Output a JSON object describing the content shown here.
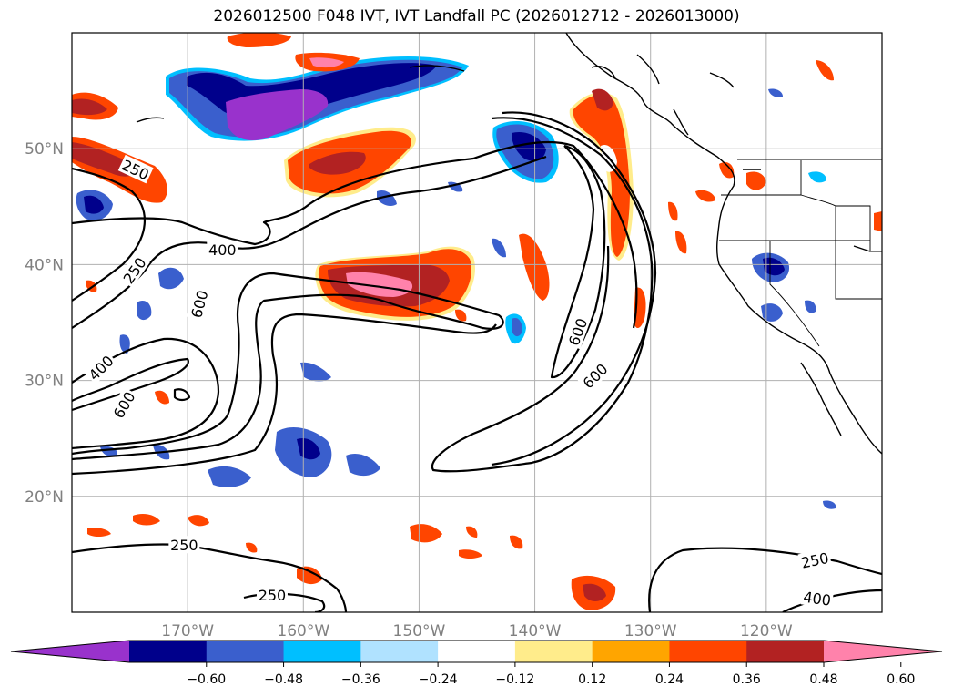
{
  "title": "2026012500 F048 IVT, IVT Landfall PC (2026012712 - 2026013000)",
  "map": {
    "projection": "cylindrical",
    "lon_range": [
      -180,
      -110
    ],
    "lat_range": [
      10,
      60
    ],
    "lon_ticks": [
      {
        "value": -170,
        "label": "170°W"
      },
      {
        "value": -160,
        "label": "160°W"
      },
      {
        "value": -150,
        "label": "150°W"
      },
      {
        "value": -140,
        "label": "140°W"
      },
      {
        "value": -130,
        "label": "130°W"
      },
      {
        "value": -120,
        "label": "120°W"
      }
    ],
    "lat_ticks": [
      {
        "value": 50,
        "label": "50°N"
      },
      {
        "value": 40,
        "label": "40°N"
      },
      {
        "value": 30,
        "label": "30°N"
      },
      {
        "value": 20,
        "label": "20°N"
      }
    ],
    "grid": true,
    "contour_labels": [
      {
        "text": "250",
        "lon": -174.5,
        "lat": 48.2,
        "angle": 25
      },
      {
        "text": "250",
        "lon": -174.6,
        "lat": 39.5,
        "angle": -55
      },
      {
        "text": "400",
        "lon": -167,
        "lat": 41.3,
        "angle": 0
      },
      {
        "text": "600",
        "lon": -169.0,
        "lat": 36.6,
        "angle": -75
      },
      {
        "text": "400",
        "lon": -177.5,
        "lat": 31.1,
        "angle": -45
      },
      {
        "text": "600",
        "lon": -175.5,
        "lat": 27.9,
        "angle": -60
      },
      {
        "text": "600",
        "lon": -136.3,
        "lat": 34.2,
        "angle": -70
      },
      {
        "text": "600",
        "lon": -134.8,
        "lat": 30.4,
        "angle": -45
      },
      {
        "text": "250",
        "lon": -170.3,
        "lat": 15.8,
        "angle": 0
      },
      {
        "text": "250",
        "lon": -162.7,
        "lat": 11.5,
        "angle": 0
      },
      {
        "text": "250",
        "lon": -115.8,
        "lat": 14.5,
        "angle": -12
      },
      {
        "text": "400",
        "lon": -115.6,
        "lat": 11.2,
        "angle": 8
      }
    ]
  },
  "colorbar": {
    "ticks": [
      "−0.60",
      "−0.48",
      "−0.36",
      "−0.24",
      "−0.12",
      "0.12",
      "0.24",
      "0.36",
      "0.48",
      "0.60"
    ],
    "colors": [
      "#9932cc",
      "#00008b",
      "#3a5fcd",
      "#00bfff",
      "#b0e2ff",
      "#ffffff",
      "#ffec8b",
      "#ffa500",
      "#ff4500",
      "#b22222",
      "#ff82ab"
    ],
    "extend": "both"
  },
  "chart_data": {
    "type": "map",
    "title": "2026012500 F048 IVT, IVT Landfall PC (2026012712 - 2026013000)",
    "contour_levels": [
      250,
      400,
      600
    ],
    "colorbar_range": [
      -0.6,
      0.6
    ],
    "colorbar_step": 0.12
  }
}
